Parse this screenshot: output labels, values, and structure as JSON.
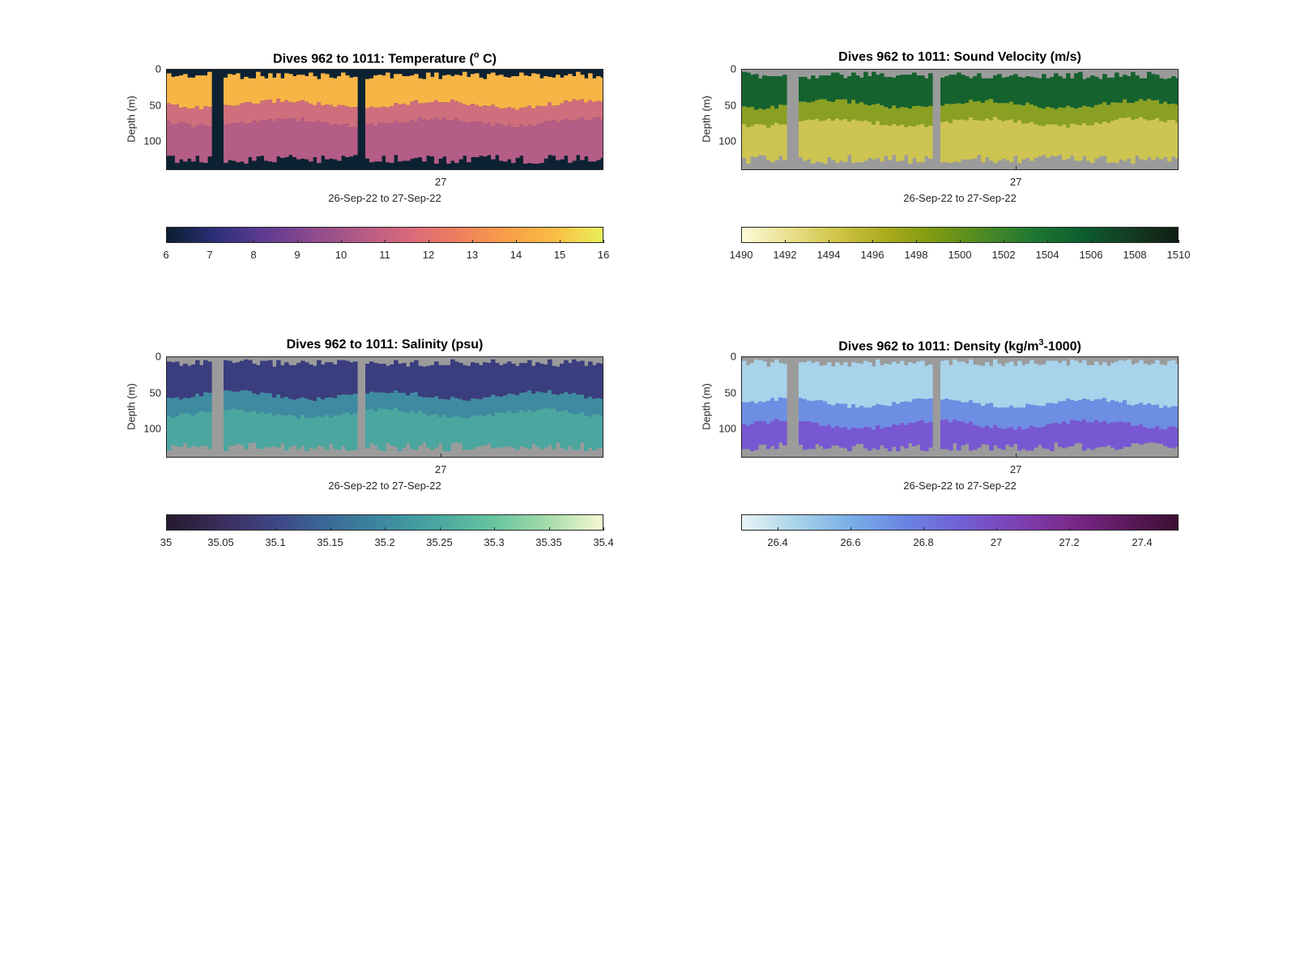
{
  "panels": [
    {
      "id": "temperature",
      "title_main": "Dives 962 to 1011: Temperature (",
      "title_sup": "o",
      "title_after": " C)",
      "ylabel": "Depth (m)",
      "yticks": [
        "0",
        "50",
        "100"
      ],
      "xtick": "27",
      "xlabel": "26-Sep-22 to 27-Sep-22",
      "colorbar_ticks": [
        "6",
        "7",
        "8",
        "9",
        "10",
        "11",
        "12",
        "13",
        "14",
        "15",
        "16"
      ],
      "colormap": [
        "#0b1e31",
        "#2b2f78",
        "#5e3b91",
        "#8c4a8e",
        "#b35b86",
        "#d9697a",
        "#ee7e5f",
        "#f89e48",
        "#f9bd45",
        "#e7f05a"
      ],
      "background": "#0c2233",
      "layers": [
        {
          "to_depth": 45,
          "color": "#f7b545"
        },
        {
          "to_depth": 70,
          "color": "#cf6e7c"
        },
        {
          "to_depth": 140,
          "color": "#b45d86"
        }
      ]
    },
    {
      "id": "sound-velocity",
      "title_main": "Dives 962 to 1011: Sound Velocity (m/s)",
      "title_sup": "",
      "title_after": "",
      "ylabel": "Depth (m)",
      "yticks": [
        "0",
        "50",
        "100"
      ],
      "xtick": "27",
      "xlabel": "26-Sep-22 to 27-Sep-22",
      "colorbar_ticks": [
        "1490",
        "1492",
        "1494",
        "1496",
        "1498",
        "1500",
        "1502",
        "1504",
        "1506",
        "1508",
        "1510"
      ],
      "colormap": [
        "#fdfbd8",
        "#e9df8c",
        "#cfc445",
        "#a9aa1c",
        "#7c9a12",
        "#4c8a24",
        "#1f7832",
        "#0d5e2f",
        "#123d23",
        "#111d14"
      ],
      "background": "#9b9b9b",
      "layers": [
        {
          "to_depth": 45,
          "color": "#15622f"
        },
        {
          "to_depth": 70,
          "color": "#8aa023"
        },
        {
          "to_depth": 140,
          "color": "#cdc452"
        }
      ]
    },
    {
      "id": "salinity",
      "title_main": "Dives 962 to 1011: Salinity (psu)",
      "title_sup": "",
      "title_after": "",
      "ylabel": "Depth (m)",
      "yticks": [
        "0",
        "50",
        "100"
      ],
      "xtick": "27",
      "xlabel": "26-Sep-22 to 27-Sep-22",
      "colorbar_ticks": [
        "35",
        "35.05",
        "35.1",
        "35.15",
        "35.2",
        "35.25",
        "35.3",
        "35.35",
        "35.4"
      ],
      "colormap": [
        "#251a2e",
        "#3b2d5c",
        "#3e4686",
        "#3b6b98",
        "#3c8a9f",
        "#4aa8a0",
        "#67c49e",
        "#a6dcab",
        "#f6f8d2"
      ],
      "background": "#9b9b9b",
      "layers": [
        {
          "to_depth": 50,
          "color": "#3a3d7e"
        },
        {
          "to_depth": 75,
          "color": "#3e8aa0"
        },
        {
          "to_depth": 140,
          "color": "#4aa69f"
        }
      ]
    },
    {
      "id": "density",
      "title_main": "Dives 962 to 1011: Density (kg/m",
      "title_sup": "3",
      "title_after": "-1000)",
      "ylabel": "Depth (m)",
      "yticks": [
        "0",
        "50",
        "100"
      ],
      "xtick": "27",
      "xlabel": "26-Sep-22 to 27-Sep-22",
      "colorbar_ticks": [
        "26.4",
        "26.6",
        "26.8",
        "27",
        "27.2",
        "27.4"
      ],
      "colormap": [
        "#e9f4f6",
        "#a9d3e8",
        "#79aee8",
        "#6a84e2",
        "#7160d5",
        "#7d42b6",
        "#7a2a8c",
        "#5e1a5f",
        "#3b0f33"
      ],
      "background": "#9b9b9b",
      "layers": [
        {
          "to_depth": 60,
          "color": "#a8d3ea"
        },
        {
          "to_depth": 90,
          "color": "#6d8ee3"
        },
        {
          "to_depth": 140,
          "color": "#7758d2"
        }
      ]
    }
  ],
  "chart_data": [
    {
      "type": "heatmap",
      "title": "Dives 962 to 1011: Temperature (o C)",
      "xlabel": "26-Sep-22 to 27-Sep-22",
      "ylabel": "Depth (m)",
      "ylim": [
        140,
        0
      ],
      "x_tick_labels": [
        "27"
      ],
      "y_tick_labels": [
        "0",
        "50",
        "100"
      ],
      "colorbar": {
        "range": [
          6,
          16
        ],
        "ticks": [
          6,
          7,
          8,
          9,
          10,
          11,
          12,
          13,
          14,
          15,
          16
        ]
      },
      "approx_values": {
        "surface_0_45m": 14.5,
        "mid_45_70m": 12.5,
        "deep_70_130m": 11.2
      }
    },
    {
      "type": "heatmap",
      "title": "Dives 962 to 1011: Sound Velocity (m/s)",
      "xlabel": "26-Sep-22 to 27-Sep-22",
      "ylabel": "Depth (m)",
      "ylim": [
        140,
        0
      ],
      "x_tick_labels": [
        "27"
      ],
      "y_tick_labels": [
        "0",
        "50",
        "100"
      ],
      "colorbar": {
        "range": [
          1490,
          1510
        ],
        "ticks": [
          1490,
          1492,
          1494,
          1496,
          1498,
          1500,
          1502,
          1504,
          1506,
          1508,
          1510
        ]
      },
      "approx_values": {
        "surface_0_45m": 1505,
        "mid_45_70m": 1499,
        "deep_70_130m": 1494
      }
    },
    {
      "type": "heatmap",
      "title": "Dives 962 to 1011: Salinity (psu)",
      "xlabel": "26-Sep-22 to 27-Sep-22",
      "ylabel": "Depth (m)",
      "ylim": [
        140,
        0
      ],
      "x_tick_labels": [
        "27"
      ],
      "y_tick_labels": [
        "0",
        "50",
        "100"
      ],
      "colorbar": {
        "range": [
          35,
          35.4
        ],
        "ticks": [
          35,
          35.05,
          35.1,
          35.15,
          35.2,
          35.25,
          35.3,
          35.35,
          35.4
        ]
      },
      "approx_values": {
        "surface_0_50m": 35.1,
        "mid_50_75m": 35.2,
        "deep_75_130m": 35.25
      }
    },
    {
      "type": "heatmap",
      "title": "Dives 962 to 1011: Density (kg/m3-1000)",
      "xlabel": "26-Sep-22 to 27-Sep-22",
      "ylabel": "Depth (m)",
      "ylim": [
        140,
        0
      ],
      "x_tick_labels": [
        "27"
      ],
      "y_tick_labels": [
        "0",
        "50",
        "100"
      ],
      "colorbar": {
        "range": [
          26.3,
          27.5
        ],
        "ticks": [
          26.4,
          26.6,
          26.8,
          27,
          27.2,
          27.4
        ]
      },
      "approx_values": {
        "upper_45_60m": 26.5,
        "mid_60_90m": 26.8,
        "deep_90_130m": 26.95
      }
    }
  ]
}
